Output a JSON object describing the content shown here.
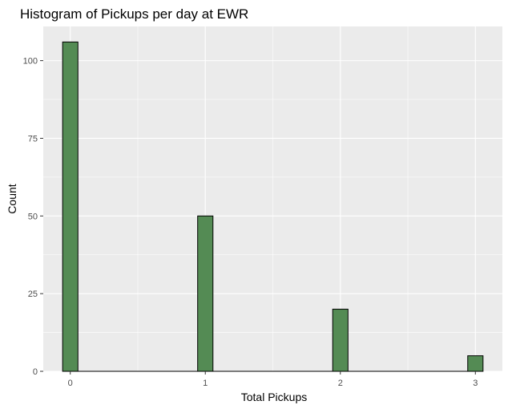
{
  "chart_data": {
    "type": "bar",
    "title": "Histogram of Pickups per day at EWR",
    "xlabel": "Total Pickups",
    "ylabel": "Count",
    "x": [
      0,
      1,
      2,
      3
    ],
    "values": [
      106,
      50,
      20,
      5
    ],
    "x_ticks": [
      "0",
      "1",
      "2",
      "3"
    ],
    "y_ticks": [
      "0",
      "25",
      "50",
      "75",
      "100"
    ],
    "xlim": [
      -0.2,
      3.2
    ],
    "ylim": [
      0,
      111
    ],
    "grid": true,
    "colors": {
      "bar_fill": "#548b54",
      "bar_stroke": "#000000",
      "panel_background": "#ebebeb",
      "grid": "#ffffff",
      "baseline": "#000000"
    }
  }
}
